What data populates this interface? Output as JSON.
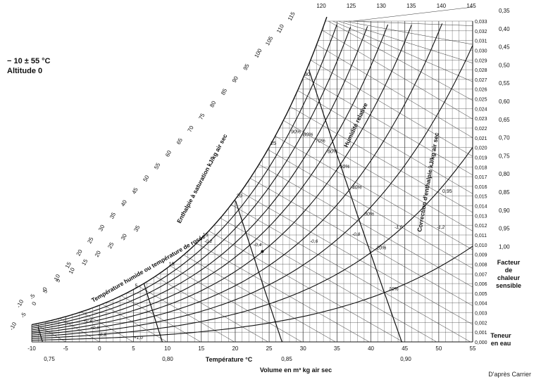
{
  "header": {
    "range_label": "− 10 ± 55 °C",
    "altitude_label": "Altitude 0"
  },
  "side_labels": {
    "sensible_heat": [
      "Facteur",
      "de chaleur",
      "sensible"
    ],
    "water_content": [
      "Teneur",
      "en eau"
    ]
  },
  "credit": "D'après Carrier",
  "chart_data": {
    "type": "line",
    "title": "",
    "xlabel": "Température °C",
    "volume_label": "Volume en m³ kg air sec",
    "enthalpy_label": "Enthalpie à saturation kJ/kg air sec",
    "wetbulb_label": "Température humide ou température de rosée",
    "rh_label": "Humidité relative",
    "correction_label": "Correction d'enthalpie kJ/kg air sec",
    "xlim": [
      -10,
      55
    ],
    "ylim": [
      0,
      0.033
    ],
    "x_ticks": [
      -10,
      -5,
      0,
      5,
      10,
      15,
      20,
      25,
      30,
      35,
      40,
      45,
      50,
      55
    ],
    "y_ticks": [
      "0,000",
      "0,001",
      "0,002",
      "0,003",
      "0,004",
      "0,005",
      "0,006",
      "0,007",
      "0,008",
      "0,009",
      "0,010",
      "0,011",
      "0,012",
      "0,013",
      "0,014",
      "0,015",
      "0,016",
      "0,017",
      "0,018",
      "0,019",
      "0,020",
      "0,021",
      "0,022",
      "0,023",
      "0,024",
      "0,025",
      "0,026",
      "0,027",
      "0,028",
      "0,029",
      "0,030",
      "0,031",
      "0,032",
      "0,033"
    ],
    "top_enthalpy_ticks": [
      "120",
      "125",
      "130",
      "135",
      "140",
      "145"
    ],
    "saturation_enthalpy_ticks": [
      "-10",
      "-5",
      "0",
      "5",
      "10",
      "15",
      "20",
      "25",
      "30",
      "35",
      "40",
      "45",
      "50",
      "55",
      "60",
      "65",
      "70",
      "75",
      "80",
      "85",
      "90",
      "95",
      "100",
      "105",
      "110",
      "115"
    ],
    "wetbulb_ticks": [
      "-10",
      "-5",
      "0",
      "5",
      "10",
      "15",
      "20",
      "25",
      "30",
      "35"
    ],
    "sat_temp_ticks": [
      "5",
      "10",
      "15",
      "20",
      "25",
      "30",
      "35",
      "40",
      "45",
      "50",
      "55"
    ],
    "volume_ticks": [
      "0,75",
      "0,80",
      "0,85",
      "0,90"
    ],
    "shf_ticks": [
      "0,35",
      "0,40",
      "0,45",
      "0,50",
      "0,55",
      "0,60",
      "0,65",
      "0,70",
      "0,75",
      "0,80",
      "0,85",
      "0,90",
      "0,95",
      "1,00"
    ],
    "rh_series": [
      {
        "name": "10%",
        "rh": 0.1
      },
      {
        "name": "20%",
        "rh": 0.2
      },
      {
        "name": "30%",
        "rh": 0.3
      },
      {
        "name": "40%",
        "rh": 0.4
      },
      {
        "name": "50%",
        "rh": 0.5
      },
      {
        "name": "60%",
        "rh": 0.6
      },
      {
        "name": "70%",
        "rh": 0.7
      },
      {
        "name": "80%",
        "rh": 0.8
      },
      {
        "name": "90%",
        "rh": 0.9
      }
    ],
    "enthalpy_correction_ticks": [
      "+0,4",
      "+0,6",
      "+0,8",
      "+1,0",
      "-0,2",
      "-0,4",
      "-0,6",
      "-0,8",
      "-1,0",
      "-1,2"
    ],
    "shf_marker": "0,95"
  }
}
